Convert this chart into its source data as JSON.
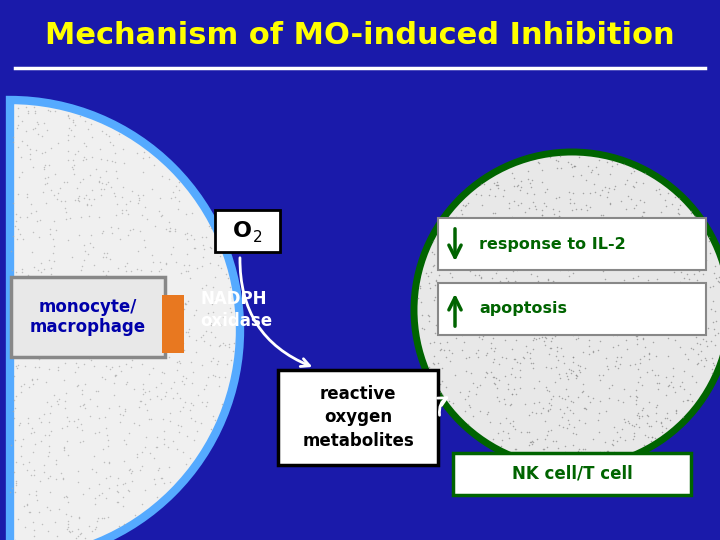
{
  "title": "Mechanism of MO-induced Inhibition",
  "title_color": "#FFFF00",
  "title_fontsize": 22,
  "bg_color": "#1a1aaa",
  "line_color": "#ffffff",
  "left_half_circle_stroke": "#55aaff",
  "left_half_circle_fill": "#f0f0f0",
  "left_box_text": "monocyte/\nmacrophage",
  "left_box_text_color": "#0000aa",
  "left_box_bg": "#e8e8e8",
  "left_box_border": "#888888",
  "orange_rect_color": "#e87820",
  "o2_label": "O",
  "o2_sub": "2",
  "nadph_label": "NADPH\noxidase",
  "rom_label": "reactive\noxygen\nmetabolites",
  "right_circle_fill": "#e8e8e8",
  "right_circle_border": "#006400",
  "response_label": "response to IL-2",
  "apoptosis_label": "apoptosis",
  "nk_label": "NK cell/T cell",
  "nk_box_bg": "#ffffff",
  "nk_box_border": "#006400",
  "box_bg_white": "#ffffff",
  "box_border_black": "#000000",
  "inner_box_bg": "#ffffff",
  "inner_box_border": "#888888",
  "arrow_white": "#ffffff",
  "down_arrow_color": "#006400",
  "up_arrow_color": "#006400",
  "text_dark_blue": "#0000aa",
  "text_dark_green": "#006400",
  "text_white": "#ffffff",
  "text_black": "#000000",
  "dot_color": "#aaaaaa",
  "dot_color2": "#888888"
}
